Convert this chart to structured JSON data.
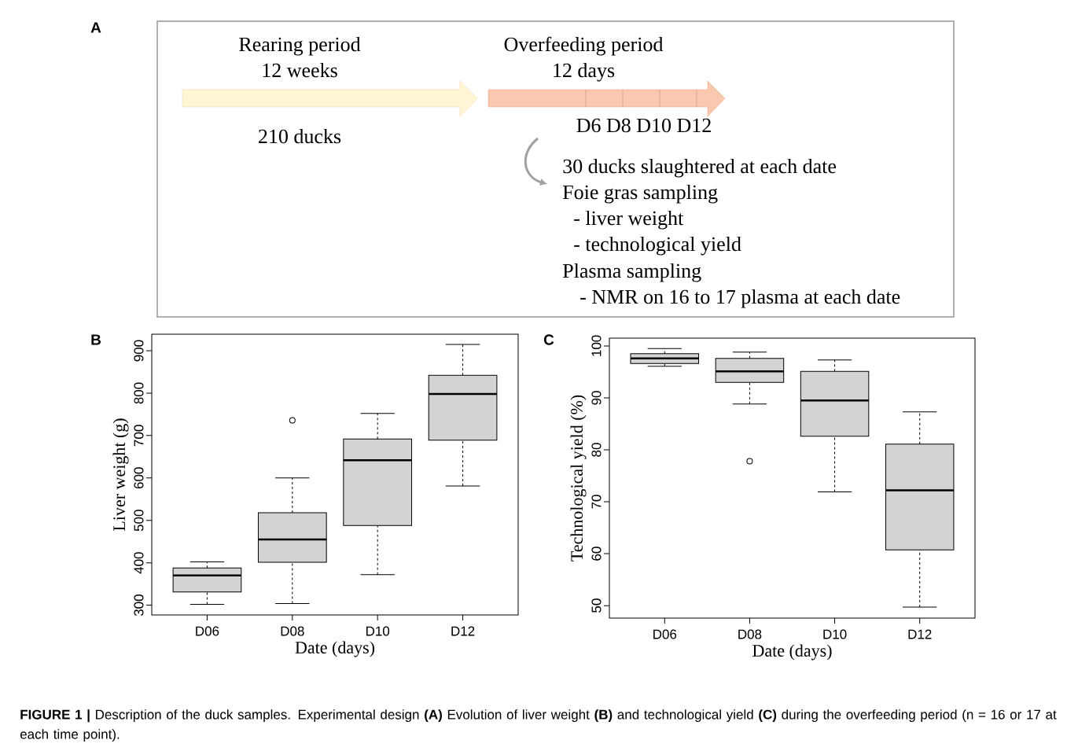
{
  "chart_data": [
    {
      "type": "other",
      "title": "A",
      "annotations": [
        "Rearing period",
        "12 weeks",
        "210 ducks",
        "Overfeeding period",
        "12 days",
        "D6 D8 D10 D12",
        "30 ducks slaughtered at each date",
        "Foie gras sampling",
        "- liver weight",
        "- technological yield",
        "Plasma sampling",
        "- NMR on 16 to 17 plasma at each date",
        "**FIGURE 1 |** Description of the duck samples. Experimental design **(A)** Evolution of liver weight **(B)** and technological yield **(C)** during the overfeeding period (n = 16 or 17 at each time point)."
      ]
    },
    {
      "type": "box",
      "title": "B",
      "xlabel": "Date (days)",
      "ylabel": "Liver weight (g)",
      "categories": [
        "D06",
        "D08",
        "D10",
        "D12"
      ],
      "color": "#d3d3d3",
      "ylim": [
        277,
        939
      ],
      "yticks": [
        300,
        400,
        500,
        600,
        700,
        800,
        900
      ],
      "boxes": [
        {
          "low": 302,
          "q1": 331,
          "median": 370,
          "q3": 388,
          "high": 402
        },
        {
          "low": 304,
          "q1": 401,
          "median": 455,
          "q3": 518,
          "high": 600,
          "outliers": [
            736
          ]
        },
        {
          "low": 372,
          "q1": 488,
          "median": 642,
          "q3": 692,
          "high": 752
        },
        {
          "low": 581,
          "q1": 689,
          "median": 798,
          "q3": 842,
          "high": 915
        }
      ]
    },
    {
      "type": "box",
      "title": "C",
      "xlabel": "Date (days)",
      "ylabel": "Technological yield (%)",
      "categories": [
        "D06",
        "D08",
        "D10",
        "D12"
      ],
      "color": "#d3d3d3",
      "ylim": [
        47.6,
        101.5
      ],
      "yticks": [
        50,
        60,
        70,
        80,
        90,
        100
      ],
      "boxes": [
        {
          "low": 96.1,
          "q1": 96.6,
          "median": 97.6,
          "q3": 98.5,
          "high": 99.5
        },
        {
          "low": 88.8,
          "q1": 93.0,
          "median": 95.1,
          "q3": 97.6,
          "high": 98.8,
          "outliers": [
            77.8
          ]
        },
        {
          "low": 71.9,
          "q1": 82.6,
          "median": 89.5,
          "q3": 95.1,
          "high": 97.3
        },
        {
          "low": 49.7,
          "q1": 60.75,
          "median": 72.2,
          "q3": 81.1,
          "high": 87.3
        }
      ]
    }
  ]
}
